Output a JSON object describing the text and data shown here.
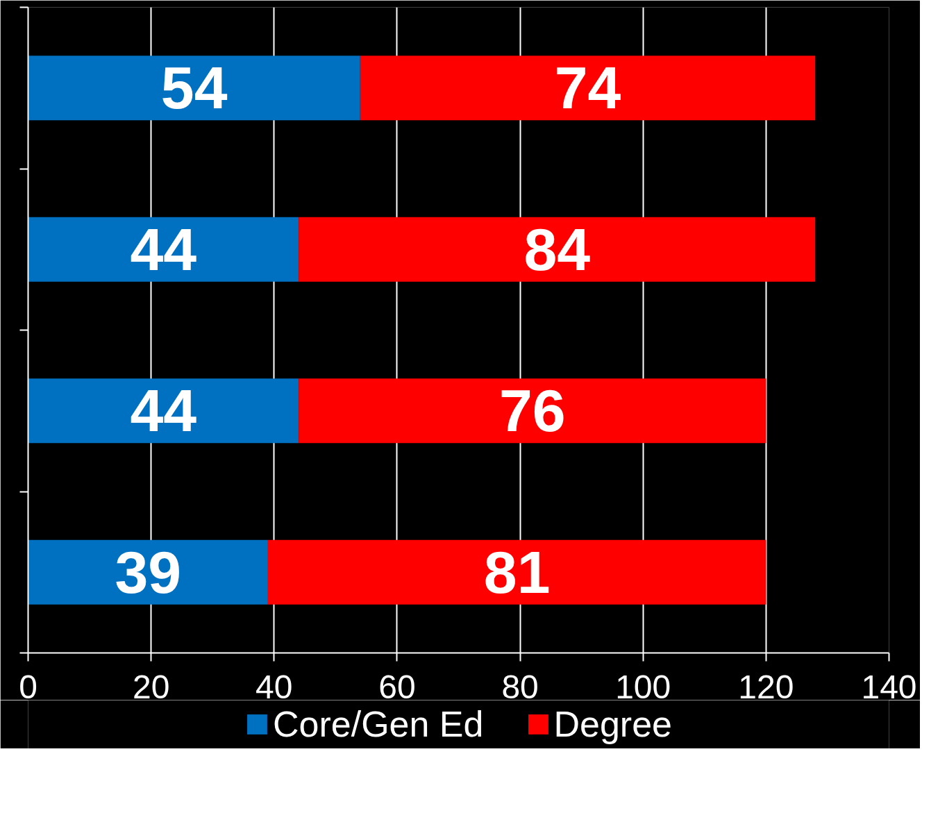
{
  "chart_data": {
    "type": "bar",
    "orientation": "horizontal",
    "stacked": true,
    "categories": [
      null,
      null,
      null,
      null
    ],
    "series": [
      {
        "name": "Core/Gen Ed",
        "color": "#0070c0",
        "values": [
          54,
          44,
          44,
          39
        ]
      },
      {
        "name": "Degree",
        "color": "#ff0000",
        "values": [
          74,
          84,
          76,
          81
        ]
      }
    ],
    "xlim": [
      0,
      140
    ],
    "xticks": [
      0,
      20,
      40,
      60,
      80,
      100,
      120,
      140
    ],
    "grid": "x",
    "legend": "bottom",
    "data_labels": true
  }
}
